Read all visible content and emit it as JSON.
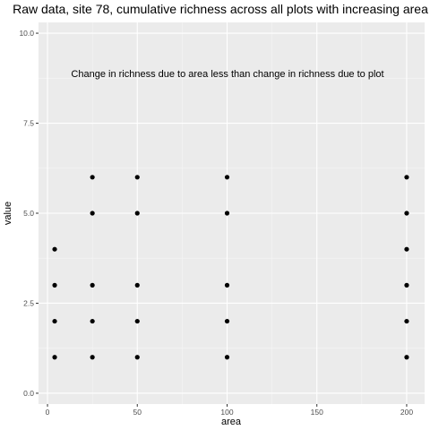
{
  "chart_data": {
    "type": "scatter",
    "title": "Raw data, site 78, cumulative richness across all plots with increasing area",
    "annotation": "Change in richness due to area less than change in richness due to plot",
    "xlabel": "area",
    "ylabel": "value",
    "xlim": [
      -5,
      210
    ],
    "ylim": [
      -0.3,
      10.3
    ],
    "x_ticks": [
      0,
      50,
      100,
      150,
      200
    ],
    "x_tick_labels": [
      "0",
      "50",
      "100",
      "150",
      "200"
    ],
    "y_ticks": [
      0,
      2.5,
      5,
      7.5,
      10
    ],
    "y_tick_labels": [
      "0.0",
      "2.5",
      "5.0",
      "7.5",
      "10.0"
    ],
    "grid": true,
    "series": [
      {
        "points": [
          {
            "x": 4,
            "y": 1
          },
          {
            "x": 4,
            "y": 2
          },
          {
            "x": 4,
            "y": 3
          },
          {
            "x": 4,
            "y": 4
          },
          {
            "x": 25,
            "y": 1
          },
          {
            "x": 25,
            "y": 2
          },
          {
            "x": 25,
            "y": 3
          },
          {
            "x": 25,
            "y": 5
          },
          {
            "x": 25,
            "y": 6
          },
          {
            "x": 50,
            "y": 1
          },
          {
            "x": 50,
            "y": 2
          },
          {
            "x": 50,
            "y": 3
          },
          {
            "x": 50,
            "y": 5
          },
          {
            "x": 50,
            "y": 6
          },
          {
            "x": 100,
            "y": 1
          },
          {
            "x": 100,
            "y": 2
          },
          {
            "x": 100,
            "y": 3
          },
          {
            "x": 100,
            "y": 5
          },
          {
            "x": 100,
            "y": 6
          },
          {
            "x": 200,
            "y": 1
          },
          {
            "x": 200,
            "y": 2
          },
          {
            "x": 200,
            "y": 3
          },
          {
            "x": 200,
            "y": 4
          },
          {
            "x": 200,
            "y": 5
          },
          {
            "x": 200,
            "y": 6
          }
        ]
      }
    ]
  }
}
